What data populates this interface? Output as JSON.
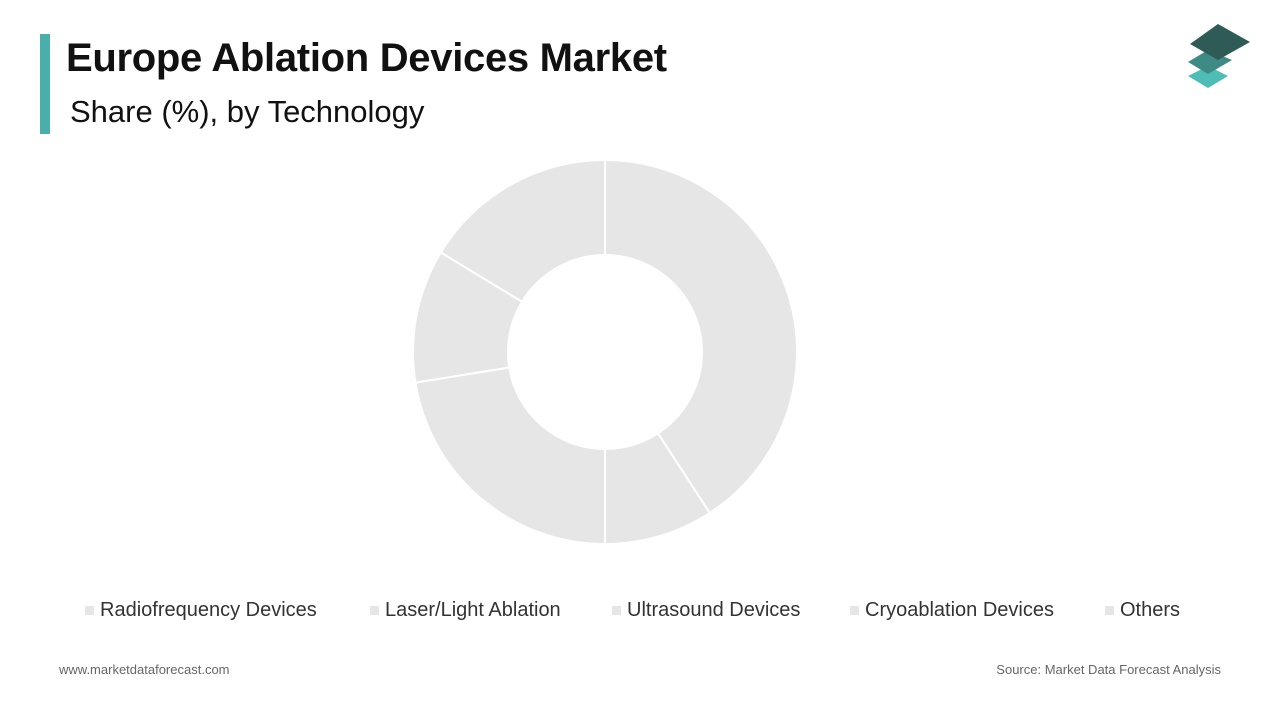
{
  "header": {
    "title": "Europe Ablation Devices Market",
    "subtitle": "Share (%), by Technology"
  },
  "colors": {
    "accent": "#4aaeaa",
    "slice_fill": "#e6e6e6",
    "slice_border": "#ffffff",
    "logo_top": "#2f5b57",
    "logo_mid": "#3f8a84",
    "logo_bottom": "#4dbdb6"
  },
  "logo": {
    "icon": "stacked-layers-logo-icon"
  },
  "chart_data": {
    "type": "pie",
    "donut": true,
    "title": "Europe Ablation Devices Market",
    "subtitle": "Share (%), by Technology",
    "legend_position": "bottom",
    "categories": [
      "Radiofrequency Devices",
      "Laser/Light Ablation",
      "Ultrasound Devices",
      "Cryoablation Devices",
      "Others"
    ],
    "values": [
      40,
      9,
      22,
      11,
      16
    ]
  },
  "footer": {
    "website": "www.marketdataforecast.com",
    "source": "Source: Market Data Forecast Analysis"
  }
}
